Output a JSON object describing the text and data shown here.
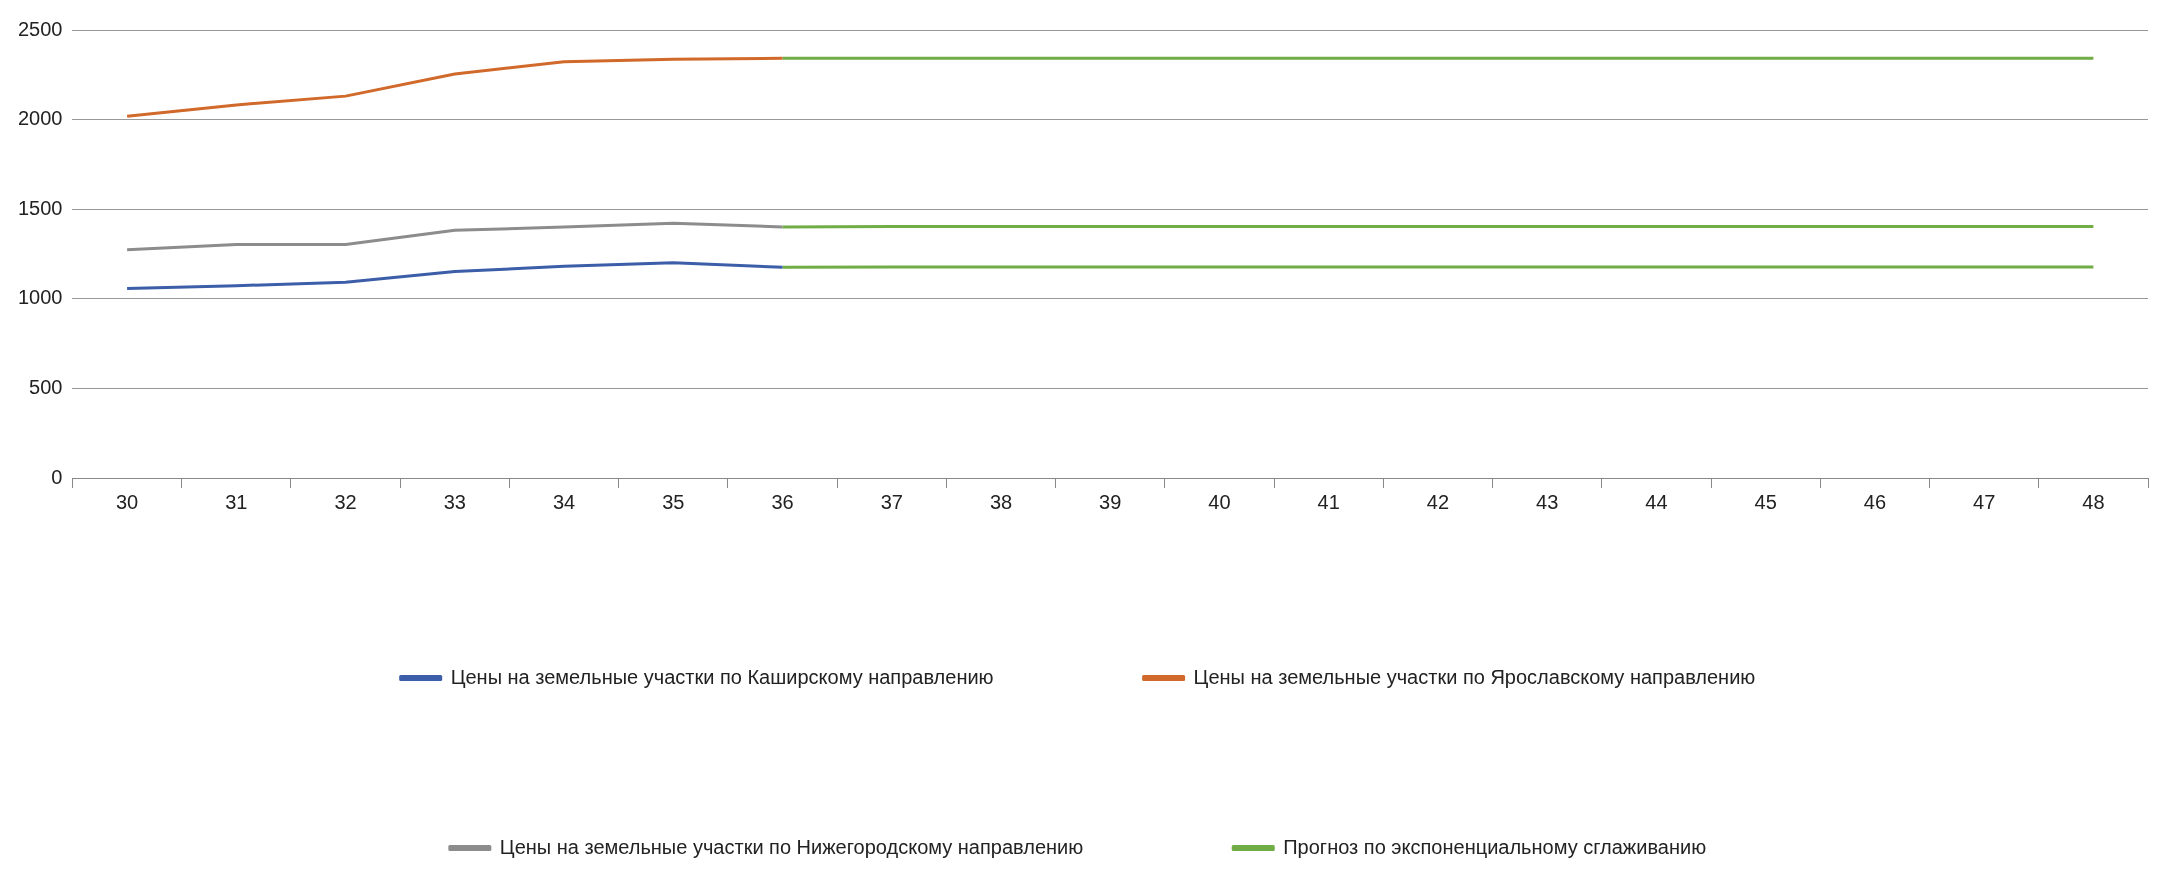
{
  "chart_data": {
    "type": "line",
    "categories": [
      "30",
      "31",
      "32",
      "33",
      "34",
      "35",
      "36",
      "37",
      "38",
      "39",
      "40",
      "41",
      "42",
      "43",
      "44",
      "45",
      "46",
      "47",
      "48"
    ],
    "series": [
      {
        "name": "Цены на земельные участки по Каширскому направлению",
        "color": "#3c5ea8",
        "values": [
          1058,
          1073,
          1093,
          1152,
          1181,
          1201,
          1176,
          null,
          null,
          null,
          null,
          null,
          null,
          null,
          null,
          null,
          null,
          null,
          null
        ]
      },
      {
        "name": "Цены на земельные участки по Ярославскому направлению",
        "color": "#d0692a",
        "values": [
          2019,
          2082,
          2131,
          2254,
          2323,
          2337,
          2342,
          null,
          null,
          null,
          null,
          null,
          null,
          null,
          null,
          null,
          null,
          null,
          null
        ]
      },
      {
        "name": "Цены на земельные участки по Нижегородскому направлению",
        "color": "#8c8c8c",
        "values": [
          1274,
          1303,
          1303,
          1382,
          1401,
          1421,
          1401,
          null,
          null,
          null,
          null,
          null,
          null,
          null,
          null,
          null,
          null,
          null,
          null
        ]
      },
      {
        "name": "Прогноз по экспоненциальному сглаживанию",
        "color": "#70ad47",
        "values": [
          null,
          null,
          null,
          null,
          null,
          null,
          2342,
          2342,
          2342,
          2342,
          2342,
          2342,
          2342,
          2342,
          2342,
          2342,
          2342,
          2342,
          2342
        ]
      },
      {
        "color": "#70ad47",
        "values": [
          null,
          null,
          null,
          null,
          null,
          null,
          1401,
          1403,
          1403,
          1403,
          1403,
          1403,
          1403,
          1403,
          1403,
          1403,
          1403,
          1403,
          1403
        ]
      },
      {
        "color": "#70ad47",
        "values": [
          null,
          null,
          null,
          null,
          null,
          null,
          1176,
          1178,
          1178,
          1178,
          1178,
          1178,
          1178,
          1178,
          1178,
          1178,
          1178,
          1178,
          1178
        ]
      }
    ],
    "ylim": [
      0,
      2500
    ],
    "yticks": [
      0,
      500,
      1000,
      1500,
      2000,
      2500
    ],
    "grid": "y",
    "legend": "bottom",
    "marker": "none",
    "line_style": "solid"
  }
}
